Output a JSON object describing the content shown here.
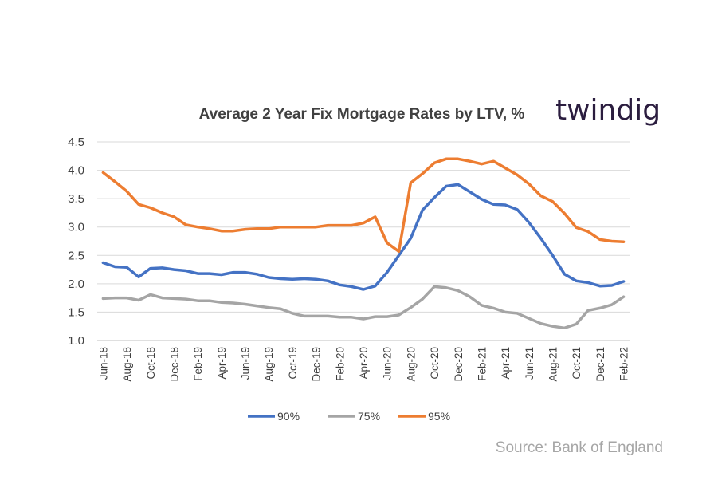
{
  "chart_data": {
    "type": "line",
    "title": "Average 2 Year Fix Mortgage Rates by LTV, %",
    "logo_text": "twindig",
    "source": "Source: Bank of England",
    "ylim": [
      1.0,
      4.5
    ],
    "yticks": [
      "1.0",
      "1.5",
      "2.0",
      "2.5",
      "3.0",
      "3.5",
      "4.0",
      "4.5"
    ],
    "ytick_values": [
      1.0,
      1.5,
      2.0,
      2.5,
      3.0,
      3.5,
      4.0,
      4.5
    ],
    "grid": true,
    "legend_position": "bottom",
    "months": [
      "Jun-18",
      "Jul-18",
      "Aug-18",
      "Sep-18",
      "Oct-18",
      "Nov-18",
      "Dec-18",
      "Jan-19",
      "Feb-19",
      "Mar-19",
      "Apr-19",
      "May-19",
      "Jun-19",
      "Jul-19",
      "Aug-19",
      "Sep-19",
      "Oct-19",
      "Nov-19",
      "Dec-19",
      "Jan-20",
      "Feb-20",
      "Mar-20",
      "Apr-20",
      "May-20",
      "Jun-20",
      "Jul-20",
      "Aug-20",
      "Sep-20",
      "Oct-20",
      "Nov-20",
      "Dec-20",
      "Jan-21",
      "Feb-21",
      "Mar-21",
      "Apr-21",
      "May-21",
      "Jun-21",
      "Jul-21",
      "Aug-21",
      "Sep-21",
      "Oct-21",
      "Nov-21",
      "Dec-21",
      "Jan-22",
      "Feb-22"
    ],
    "x_tick_labels": [
      "Jun-18",
      "Aug-18",
      "Oct-18",
      "Dec-18",
      "Feb-19",
      "Apr-19",
      "Jun-19",
      "Aug-19",
      "Oct-19",
      "Dec-19",
      "Feb-20",
      "Apr-20",
      "Jun-20",
      "Aug-20",
      "Oct-20",
      "Dec-20",
      "Feb-21",
      "Apr-21",
      "Jun-21",
      "Aug-21",
      "Oct-21",
      "Dec-21",
      "Feb-22"
    ],
    "series": [
      {
        "name": "90%",
        "color": "#4472c4",
        "values": [
          2.37,
          2.3,
          2.29,
          2.12,
          2.27,
          2.28,
          2.25,
          2.23,
          2.18,
          2.18,
          2.16,
          2.2,
          2.2,
          2.17,
          2.11,
          2.09,
          2.08,
          2.09,
          2.08,
          2.05,
          1.98,
          1.95,
          1.9,
          1.96,
          2.2,
          2.5,
          2.8,
          3.3,
          3.52,
          3.72,
          3.75,
          3.62,
          3.49,
          3.4,
          3.39,
          3.31,
          3.08,
          2.8,
          2.5,
          2.17,
          2.05,
          2.02,
          1.96,
          1.97,
          2.04
        ]
      },
      {
        "name": "75%",
        "color": "#a5a5a5",
        "values": [
          1.74,
          1.75,
          1.75,
          1.71,
          1.81,
          1.75,
          1.74,
          1.73,
          1.7,
          1.7,
          1.67,
          1.66,
          1.64,
          1.61,
          1.58,
          1.56,
          1.48,
          1.43,
          1.43,
          1.43,
          1.41,
          1.41,
          1.38,
          1.42,
          1.42,
          1.45,
          1.58,
          1.73,
          1.95,
          1.93,
          1.88,
          1.77,
          1.62,
          1.57,
          1.5,
          1.48,
          1.39,
          1.3,
          1.25,
          1.22,
          1.29,
          1.53,
          1.57,
          1.63,
          1.77
        ]
      },
      {
        "name": "95%",
        "color": "#ed7d31",
        "values": [
          3.96,
          3.8,
          3.63,
          3.4,
          3.34,
          3.25,
          3.18,
          3.04,
          3.0,
          2.97,
          2.93,
          2.93,
          2.96,
          2.97,
          2.97,
          3.0,
          3.0,
          3.0,
          3.0,
          3.03,
          3.03,
          3.03,
          3.07,
          3.18,
          2.72,
          2.57,
          3.78,
          3.94,
          4.13,
          4.2,
          4.2,
          4.16,
          4.11,
          4.16,
          4.04,
          3.92,
          3.76,
          3.55,
          3.45,
          3.24,
          2.99,
          2.92,
          2.78,
          2.75,
          2.74
        ]
      }
    ]
  }
}
